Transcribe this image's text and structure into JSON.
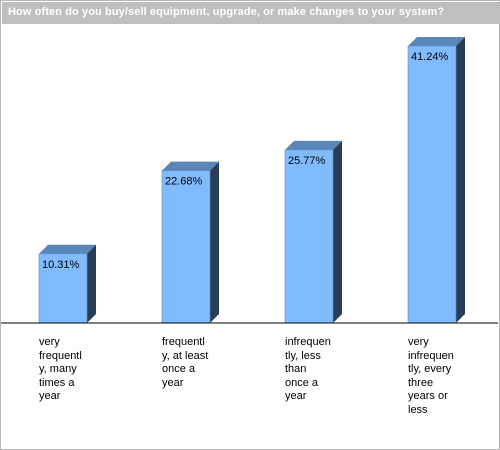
{
  "title": "How often do you buy/sell equipment, upgrade, or make changes to your system?",
  "colors": {
    "title_bg": "#bfbfbf",
    "title_text": "#ffffff",
    "bar_front": "#80bbff",
    "bar_side": "#2a3d57",
    "bar_top": "#5a86b8",
    "axis": "#000000"
  },
  "chart_data": {
    "type": "bar",
    "title": "How often do you buy/sell equipment, upgrade, or make changes to your system?",
    "categories": [
      "very frequently, many times a year",
      "frequently, at least once a year",
      "infrequently, less than once a year",
      "very infrequently, every three years or less"
    ],
    "category_labels_wrapped": [
      [
        "very",
        "frequentl",
        "y, many",
        "times a",
        "year"
      ],
      [
        "frequentl",
        "y, at least",
        "once a",
        "year"
      ],
      [
        "infrequen",
        "tly, less",
        "than",
        "once a",
        "year"
      ],
      [
        "very",
        "infrequen",
        "tly, every",
        "three",
        "years or",
        "less"
      ]
    ],
    "values": [
      10.31,
      22.68,
      25.77,
      41.24
    ],
    "data_labels": [
      "10.31%",
      "22.68%",
      "25.77%",
      "41.24%"
    ],
    "ylim": [
      0,
      45
    ],
    "unit": "%",
    "grid": false,
    "legend": "none"
  }
}
